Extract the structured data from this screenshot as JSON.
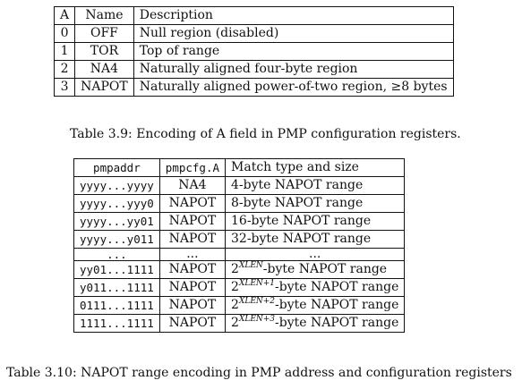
{
  "table1": {
    "headers": [
      "A",
      "Name",
      "Description"
    ],
    "rows": [
      [
        "0",
        "OFF",
        "Null region (disabled)"
      ],
      [
        "1",
        "TOR",
        "Top of range"
      ],
      [
        "2",
        "NA4",
        "Naturally aligned four-byte region"
      ],
      [
        "3",
        "NAPOT",
        "Naturally aligned power-of-two region, ≥8 bytes"
      ]
    ]
  },
  "caption1": "Table 3.9: Encoding of A field in PMP configuration registers.",
  "table2": {
    "headers": [
      "pmpaddr",
      "pmpcfg.A",
      "Match type and size"
    ],
    "rows": [
      {
        "addr": "yyyy...yyyy",
        "cfg": "NA4",
        "base": "",
        "exp": "",
        "size": "4-byte NAPOT range"
      },
      {
        "addr": "yyyy...yyy0",
        "cfg": "NAPOT",
        "base": "",
        "exp": "",
        "size": "8-byte NAPOT range"
      },
      {
        "addr": "yyyy...yy01",
        "cfg": "NAPOT",
        "base": "",
        "exp": "",
        "size": "16-byte NAPOT range"
      },
      {
        "addr": "yyyy...y011",
        "cfg": "NAPOT",
        "base": "",
        "exp": "",
        "size": "32-byte NAPOT range"
      },
      {
        "addr": "...",
        "cfg": "...",
        "base": "",
        "exp": "",
        "size": "..."
      },
      {
        "addr": "yy01...1111",
        "cfg": "NAPOT",
        "base": "2",
        "exp": "XLEN",
        "size": "-byte NAPOT range"
      },
      {
        "addr": "y011...1111",
        "cfg": "NAPOT",
        "base": "2",
        "exp": "XLEN+1",
        "size": "-byte NAPOT range"
      },
      {
        "addr": "0111...1111",
        "cfg": "NAPOT",
        "base": "2",
        "exp": "XLEN+2",
        "size": "-byte NAPOT range"
      },
      {
        "addr": "1111...1111",
        "cfg": "NAPOT",
        "base": "2",
        "exp": "XLEN+3",
        "size": "-byte NAPOT range"
      }
    ]
  },
  "caption2": "Table 3.10: NAPOT range encoding in PMP address and configuration registers"
}
